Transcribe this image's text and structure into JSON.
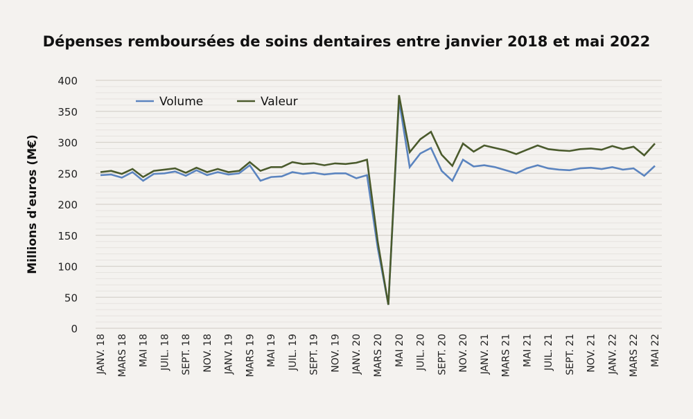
{
  "chart_data": {
    "type": "line",
    "title": "Dépenses remboursées de soins dentaires entre janvier 2018 et mai 2022",
    "xlabel": "",
    "ylabel": "Millions d'euros (M€)",
    "ylim": [
      0,
      400
    ],
    "yticks": [
      0,
      50,
      100,
      150,
      200,
      250,
      300,
      350,
      400
    ],
    "grid": true,
    "legend_position": "top-left",
    "x_tick_labels": [
      "JANV. 18",
      "MARS 18",
      "MAI 18",
      "JUIL. 18",
      "SEPT. 18",
      "NOV. 18",
      "JANV. 19",
      "MARS 19",
      "MAI 19",
      "JUIL. 19",
      "SEPT. 19",
      "NOV. 19",
      "JANV. 20",
      "MARS 20",
      "MAI 20",
      "JUIL. 20",
      "SEPT. 20",
      "NOV. 20",
      "JANV. 21",
      "MARS 21",
      "MAI 21",
      "JUIL. 21",
      "SEPT. 21",
      "NOV. 21",
      "JANV. 22",
      "MARS 22",
      "MAI 22"
    ],
    "series": [
      {
        "name": "Volume",
        "color": "#5b84bf",
        "values": [
          247,
          248,
          243,
          252,
          238,
          249,
          250,
          253,
          246,
          255,
          247,
          252,
          248,
          250,
          263,
          238,
          244,
          245,
          252,
          249,
          251,
          248,
          250,
          250,
          242,
          247,
          130,
          38,
          368,
          260,
          282,
          291,
          254,
          238,
          272,
          261,
          263,
          260,
          255,
          250,
          258,
          263,
          258,
          256,
          255,
          258,
          259,
          257,
          260,
          256,
          258,
          246,
          262
        ]
      },
      {
        "name": "Valeur",
        "color": "#4a5a2c",
        "values": [
          252,
          254,
          249,
          257,
          244,
          254,
          256,
          258,
          251,
          259,
          252,
          257,
          252,
          254,
          268,
          254,
          260,
          260,
          268,
          265,
          266,
          263,
          266,
          265,
          267,
          272,
          140,
          38,
          376,
          284,
          305,
          317,
          280,
          262,
          298,
          285,
          295,
          291,
          287,
          281,
          288,
          295,
          289,
          287,
          286,
          289,
          290,
          288,
          294,
          289,
          293,
          279,
          298
        ]
      }
    ]
  }
}
